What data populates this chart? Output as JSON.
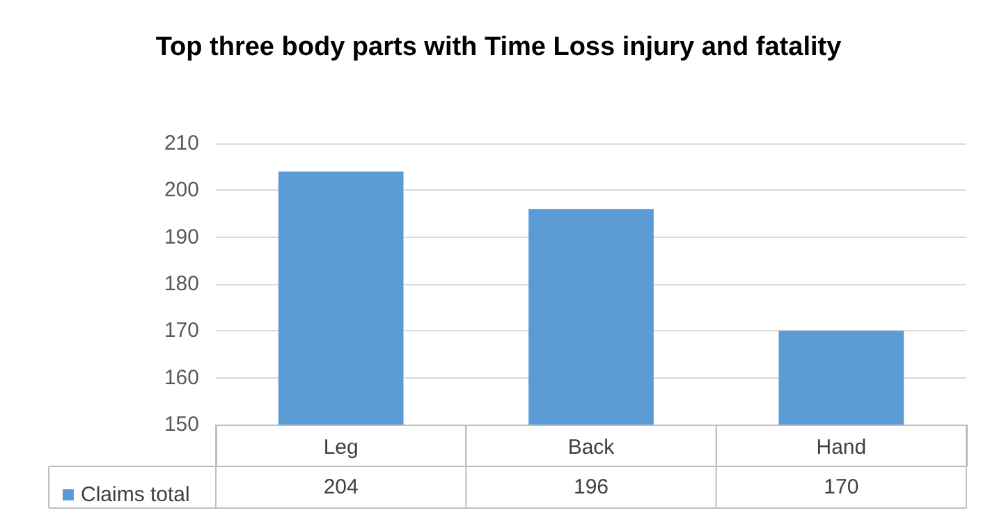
{
  "chart_data": {
    "type": "bar",
    "title": "Top three body parts with Time Loss injury and fatality",
    "categories": [
      "Leg",
      "Back",
      "Hand"
    ],
    "series": [
      {
        "name": "Claims total",
        "color": "#5b9bd5",
        "values": [
          204,
          196,
          170
        ]
      }
    ],
    "ylim": [
      150,
      210
    ],
    "yticks": [
      150,
      160,
      170,
      180,
      190,
      200,
      210
    ],
    "grid": "y",
    "legend": "bottom",
    "data_labels": true
  }
}
